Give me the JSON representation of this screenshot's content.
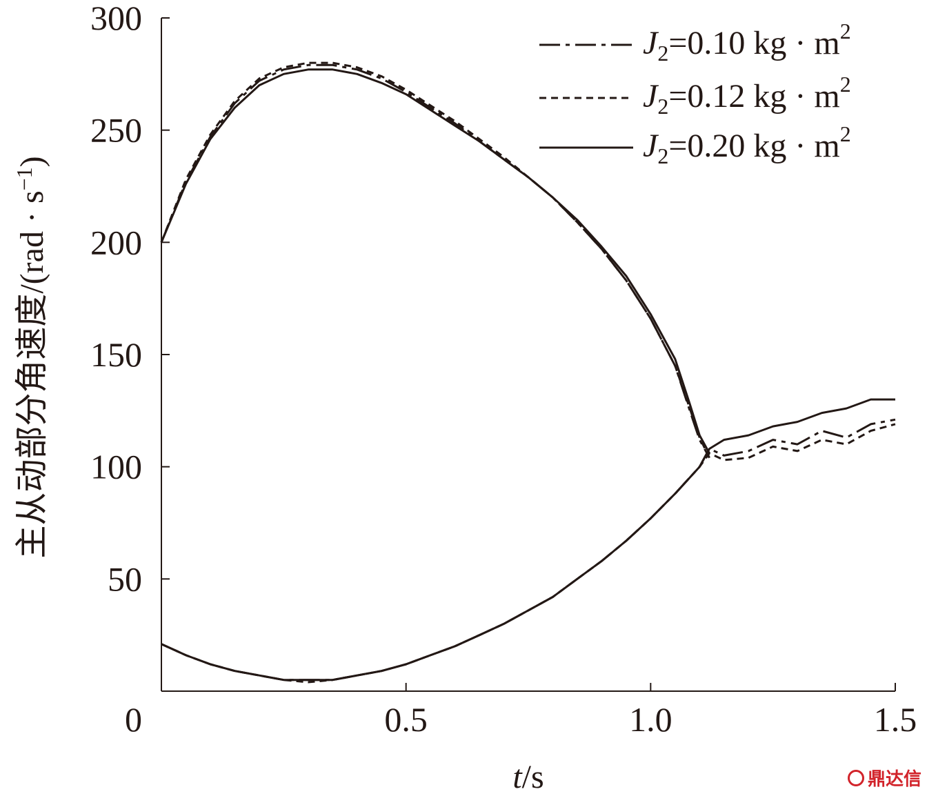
{
  "chart_data": {
    "type": "line",
    "title": "",
    "xlabel": {
      "var": "t",
      "unit": "/s"
    },
    "ylabel": {
      "prefix": "主从动部分角速度/(rad · s",
      "sup": "−1",
      "suffix": ")"
    },
    "xlim": [
      0,
      1.5
    ],
    "ylim": [
      0,
      300
    ],
    "xticks": [
      0,
      0.5,
      1.0,
      1.5
    ],
    "xtick_labels": [
      "0",
      "0.5",
      "1.0",
      "1.5"
    ],
    "yticks": [
      50,
      100,
      150,
      200,
      250,
      300
    ],
    "ytick_labels": [
      "50",
      "100",
      "150",
      "200",
      "250",
      "300"
    ],
    "grid": false,
    "legend_position": "top-right",
    "colors": {
      "line": "#231815",
      "watermark": "#d2232a"
    },
    "series": [
      {
        "name": "J2=0.10 kg · m2",
        "legend": {
          "var": "J",
          "sub": "2",
          "eq": "=0.10 kg · m",
          "sup": "2"
        },
        "style": "dashdot",
        "driving": [
          [
            0,
            200
          ],
          [
            0.05,
            227
          ],
          [
            0.1,
            247
          ],
          [
            0.15,
            262
          ],
          [
            0.2,
            272
          ],
          [
            0.25,
            277
          ],
          [
            0.3,
            279
          ],
          [
            0.35,
            279
          ],
          [
            0.4,
            277
          ],
          [
            0.45,
            273
          ],
          [
            0.5,
            267
          ],
          [
            0.55,
            260
          ],
          [
            0.6,
            253
          ],
          [
            0.65,
            245
          ],
          [
            0.7,
            237
          ],
          [
            0.75,
            229
          ],
          [
            0.8,
            220
          ],
          [
            0.85,
            209
          ],
          [
            0.9,
            197
          ],
          [
            0.95,
            183
          ],
          [
            1.0,
            166
          ],
          [
            1.05,
            145
          ],
          [
            1.08,
            125
          ],
          [
            1.1,
            112
          ],
          [
            1.12,
            104
          ]
        ],
        "driven": [
          [
            0,
            21
          ],
          [
            0.05,
            16
          ],
          [
            0.1,
            12
          ],
          [
            0.15,
            9
          ],
          [
            0.2,
            7
          ],
          [
            0.25,
            5
          ],
          [
            0.3,
            5
          ],
          [
            0.35,
            5
          ],
          [
            0.4,
            7
          ],
          [
            0.45,
            9
          ],
          [
            0.5,
            12
          ],
          [
            0.55,
            16
          ],
          [
            0.6,
            20
          ],
          [
            0.65,
            25
          ],
          [
            0.7,
            30
          ],
          [
            0.75,
            36
          ],
          [
            0.8,
            42
          ],
          [
            0.85,
            50
          ],
          [
            0.9,
            58
          ],
          [
            0.95,
            67
          ],
          [
            1.0,
            77
          ],
          [
            1.05,
            88
          ],
          [
            1.1,
            100
          ],
          [
            1.12,
            108
          ],
          [
            1.15,
            105
          ],
          [
            1.2,
            107
          ],
          [
            1.25,
            112
          ],
          [
            1.3,
            110
          ],
          [
            1.35,
            116
          ],
          [
            1.4,
            113
          ],
          [
            1.45,
            119
          ],
          [
            1.5,
            121
          ]
        ]
      },
      {
        "name": "J2=0.12 kg · m2",
        "legend": {
          "var": "J",
          "sub": "2",
          "eq": "=0.12 kg · m",
          "sup": "2"
        },
        "style": "dashed",
        "driving": [
          [
            0,
            200
          ],
          [
            0.05,
            228
          ],
          [
            0.1,
            248
          ],
          [
            0.15,
            263
          ],
          [
            0.2,
            273
          ],
          [
            0.25,
            278
          ],
          [
            0.3,
            280
          ],
          [
            0.35,
            280
          ],
          [
            0.4,
            278
          ],
          [
            0.45,
            274
          ],
          [
            0.5,
            268
          ],
          [
            0.55,
            261
          ],
          [
            0.6,
            254
          ],
          [
            0.65,
            246
          ],
          [
            0.7,
            238
          ],
          [
            0.75,
            229
          ],
          [
            0.8,
            220
          ],
          [
            0.85,
            209
          ],
          [
            0.9,
            197
          ],
          [
            0.95,
            183
          ],
          [
            1.0,
            166
          ],
          [
            1.05,
            145
          ],
          [
            1.08,
            126
          ],
          [
            1.1,
            113
          ],
          [
            1.12,
            104
          ]
        ],
        "driven": [
          [
            0,
            21
          ],
          [
            0.05,
            16
          ],
          [
            0.1,
            12
          ],
          [
            0.15,
            9
          ],
          [
            0.2,
            7
          ],
          [
            0.25,
            5
          ],
          [
            0.3,
            4
          ],
          [
            0.35,
            5
          ],
          [
            0.4,
            7
          ],
          [
            0.45,
            9
          ],
          [
            0.5,
            12
          ],
          [
            0.55,
            16
          ],
          [
            0.6,
            20
          ],
          [
            0.65,
            25
          ],
          [
            0.7,
            30
          ],
          [
            0.75,
            36
          ],
          [
            0.8,
            42
          ],
          [
            0.85,
            50
          ],
          [
            0.9,
            58
          ],
          [
            0.95,
            67
          ],
          [
            1.0,
            77
          ],
          [
            1.05,
            88
          ],
          [
            1.1,
            100
          ],
          [
            1.12,
            106
          ],
          [
            1.15,
            103
          ],
          [
            1.2,
            104
          ],
          [
            1.25,
            109
          ],
          [
            1.3,
            107
          ],
          [
            1.35,
            112
          ],
          [
            1.4,
            110
          ],
          [
            1.45,
            116
          ],
          [
            1.5,
            119
          ]
        ]
      },
      {
        "name": "J2=0.20 kg · m2",
        "legend": {
          "var": "J",
          "sub": "2",
          "eq": "=0.20 kg · m",
          "sup": "2"
        },
        "style": "solid",
        "driving": [
          [
            0,
            200
          ],
          [
            0.05,
            226
          ],
          [
            0.1,
            246
          ],
          [
            0.15,
            260
          ],
          [
            0.2,
            270
          ],
          [
            0.25,
            275
          ],
          [
            0.3,
            277
          ],
          [
            0.35,
            277
          ],
          [
            0.4,
            275
          ],
          [
            0.45,
            271
          ],
          [
            0.5,
            266
          ],
          [
            0.55,
            259
          ],
          [
            0.6,
            252
          ],
          [
            0.65,
            245
          ],
          [
            0.7,
            237
          ],
          [
            0.75,
            229
          ],
          [
            0.8,
            220
          ],
          [
            0.85,
            210
          ],
          [
            0.9,
            198
          ],
          [
            0.95,
            185
          ],
          [
            1.0,
            168
          ],
          [
            1.05,
            148
          ],
          [
            1.08,
            128
          ],
          [
            1.1,
            114
          ],
          [
            1.12,
            106
          ]
        ],
        "driven": [
          [
            0,
            21
          ],
          [
            0.05,
            16
          ],
          [
            0.1,
            12
          ],
          [
            0.15,
            9
          ],
          [
            0.2,
            7
          ],
          [
            0.25,
            5
          ],
          [
            0.3,
            5
          ],
          [
            0.35,
            5
          ],
          [
            0.4,
            7
          ],
          [
            0.45,
            9
          ],
          [
            0.5,
            12
          ],
          [
            0.55,
            16
          ],
          [
            0.6,
            20
          ],
          [
            0.65,
            25
          ],
          [
            0.7,
            30
          ],
          [
            0.75,
            36
          ],
          [
            0.8,
            42
          ],
          [
            0.85,
            50
          ],
          [
            0.9,
            58
          ],
          [
            0.95,
            67
          ],
          [
            1.0,
            77
          ],
          [
            1.05,
            88
          ],
          [
            1.1,
            100
          ],
          [
            1.12,
            108
          ],
          [
            1.15,
            112
          ],
          [
            1.2,
            114
          ],
          [
            1.25,
            118
          ],
          [
            1.3,
            120
          ],
          [
            1.35,
            124
          ],
          [
            1.4,
            126
          ],
          [
            1.45,
            130
          ],
          [
            1.5,
            130
          ]
        ]
      }
    ]
  },
  "watermark": {
    "text": "鼎达信"
  }
}
